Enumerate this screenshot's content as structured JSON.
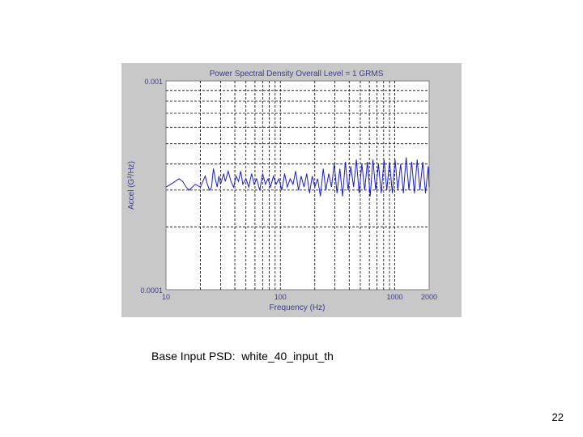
{
  "slide": {
    "caption": "Base Input PSD:  white_40_input_th",
    "page_number": "22"
  },
  "chart_data": {
    "type": "line",
    "title": "Power Spectral Density  Overall Level =     1 GRMS",
    "xlabel": "Frequency (Hz)",
    "ylabel": "Accel (G²/Hz)",
    "x_scale": "log",
    "y_scale": "log",
    "xlim": [
      10,
      2000
    ],
    "ylim": [
      0.0001,
      0.001
    ],
    "x_tick_labels": [
      "10",
      "100",
      "1000",
      "2000"
    ],
    "y_tick_labels": [
      "0.001",
      "0.0001"
    ],
    "grid": true,
    "series": [
      {
        "color": "#1c1ccf",
        "x": [
          10,
          11,
          12,
          13,
          14,
          15,
          16,
          17,
          18,
          20,
          21,
          22,
          23,
          24,
          25,
          26,
          27,
          28,
          29,
          30,
          32,
          33,
          35,
          37,
          39,
          41,
          43,
          45,
          47,
          50,
          53,
          56,
          59,
          62,
          66,
          70,
          74,
          78,
          82,
          87,
          92,
          97,
          103,
          109,
          115,
          122,
          129,
          136,
          144,
          152,
          161,
          170,
          180,
          190,
          200,
          212,
          224,
          237,
          250,
          265,
          280,
          296,
          313,
          331,
          350,
          370,
          391,
          413,
          437,
          462,
          488,
          516,
          546,
          577,
          610,
          645,
          682,
          721,
          762,
          806,
          852,
          901,
          953,
          1007,
          1065,
          1126,
          1190,
          1258,
          1330,
          1406,
          1487,
          1572,
          1662,
          1757,
          1858,
          1964,
          2000
        ],
        "y": [
          0.00031,
          0.00032,
          0.00033,
          0.00034,
          0.00033,
          0.00031,
          0.0003,
          0.00031,
          0.00032,
          0.00031,
          0.00033,
          0.00035,
          0.00032,
          0.0003,
          0.00031,
          0.00038,
          0.00034,
          0.00031,
          0.00035,
          0.00032,
          0.00036,
          0.00033,
          0.00037,
          0.00033,
          0.00031,
          0.00035,
          0.00033,
          0.00037,
          0.00032,
          0.00034,
          0.00031,
          0.00036,
          0.00032,
          0.00034,
          0.0003,
          0.00036,
          0.00032,
          0.00034,
          0.00031,
          0.00035,
          0.00032,
          0.00034,
          0.0003,
          0.00036,
          0.00031,
          0.00034,
          0.00032,
          0.00037,
          0.0003,
          0.00035,
          0.00031,
          0.00036,
          0.00029,
          0.00035,
          0.00031,
          0.00034,
          0.00028,
          0.00038,
          0.0003,
          0.00036,
          0.00031,
          0.0004,
          0.00029,
          0.00038,
          0.00028,
          0.00041,
          0.0003,
          0.00039,
          0.00031,
          0.00042,
          0.00029,
          0.0004,
          0.0003,
          0.00041,
          0.00028,
          0.00042,
          0.0003,
          0.0004,
          0.00029,
          0.00042,
          0.0003,
          0.00041,
          0.00029,
          0.00042,
          0.0003,
          0.0004,
          0.00029,
          0.00043,
          0.0003,
          0.00041,
          0.00029,
          0.00042,
          0.0003,
          0.00041,
          0.00029,
          0.00039,
          0.00031
        ]
      }
    ]
  }
}
